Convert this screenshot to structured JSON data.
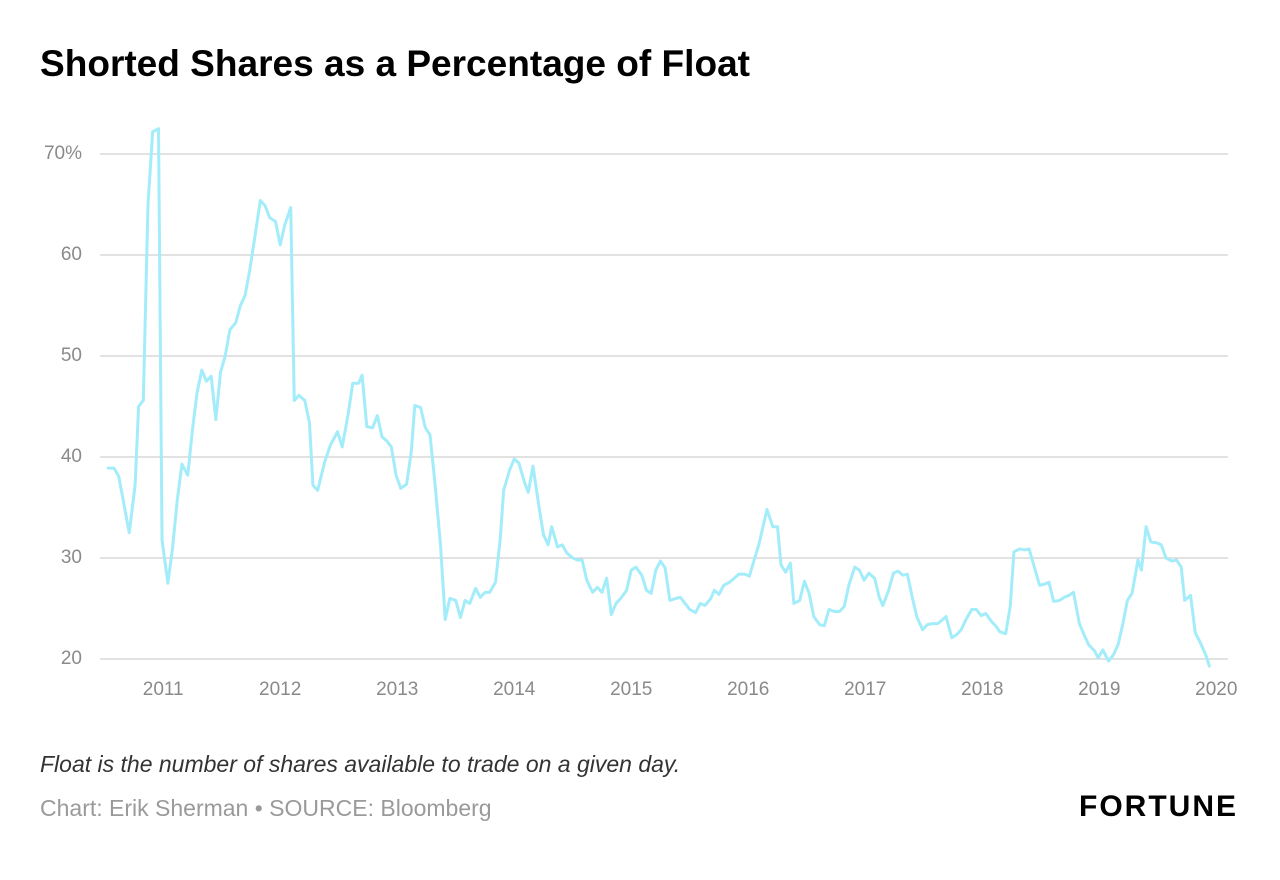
{
  "chart_data": {
    "type": "line",
    "title": "Shorted Shares as a Percentage of Float",
    "note": "Float is the number of shares available to trade on a given day.",
    "source": "Chart: Erik Sherman • SOURCE: Bloomberg",
    "logo": "FORTUNE",
    "grid": true,
    "xlim": [
      2010.46,
      2020.1
    ],
    "xticks": [
      2011,
      2012,
      2013,
      2014,
      2015,
      2016,
      2017,
      2018,
      2019,
      2020
    ],
    "ylim": [
      19,
      73
    ],
    "yticks": [
      {
        "value": 70,
        "label": "70%"
      },
      60,
      50,
      40,
      30,
      20
    ],
    "x": [
      2010.53,
      2010.58,
      2010.62,
      2010.71,
      2010.76,
      2010.79,
      2010.83,
      2010.87,
      2010.91,
      2010.96,
      2010.99,
      2011.04,
      2011.08,
      2011.12,
      2011.16,
      2011.21,
      2011.25,
      2011.29,
      2011.33,
      2011.37,
      2011.41,
      2011.45,
      2011.49,
      2011.53,
      2011.57,
      2011.62,
      2011.66,
      2011.7,
      2011.74,
      2011.79,
      2011.83,
      2011.87,
      2011.91,
      2011.96,
      2012.0,
      2012.04,
      2012.09,
      2012.12,
      2012.16,
      2012.21,
      2012.25,
      2012.28,
      2012.32,
      2012.38,
      2012.43,
      2012.49,
      2012.53,
      2012.58,
      2012.62,
      2012.67,
      2012.7,
      2012.74,
      2012.79,
      2012.83,
      2012.87,
      2012.91,
      2012.95,
      2012.99,
      2013.03,
      2013.08,
      2013.12,
      2013.15,
      2013.2,
      2013.24,
      2013.28,
      2013.32,
      2013.37,
      2013.41,
      2013.45,
      2013.5,
      2013.54,
      2013.58,
      2013.62,
      2013.67,
      2013.71,
      2013.75,
      2013.79,
      2013.84,
      2013.88,
      2013.91,
      2013.96,
      2014.0,
      2014.04,
      2014.09,
      2014.12,
      2014.16,
      2014.21,
      2014.25,
      2014.29,
      2014.32,
      2014.37,
      2014.41,
      2014.45,
      2014.5,
      2014.54,
      2014.58,
      2014.62,
      2014.67,
      2014.71,
      2014.75,
      2014.79,
      2014.83,
      2014.87,
      2014.91,
      2014.96,
      2015.0,
      2015.04,
      2015.09,
      2015.13,
      2015.17,
      2015.21,
      2015.25,
      2015.29,
      2015.33,
      2015.38,
      2015.42,
      2015.46,
      2015.5,
      2015.55,
      2015.59,
      2015.63,
      2015.68,
      2015.71,
      2015.75,
      2015.79,
      2015.84,
      2015.88,
      2015.92,
      2015.97,
      2016.01,
      2016.05,
      2016.09,
      2016.13,
      2016.16,
      2016.21,
      2016.25,
      2016.28,
      2016.32,
      2016.36,
      2016.39,
      2016.44,
      2016.48,
      2016.52,
      2016.56,
      2016.61,
      2016.65,
      2016.69,
      2016.74,
      2016.78,
      2016.82,
      2016.86,
      2016.91,
      2016.95,
      2016.99,
      2017.03,
      2017.08,
      2017.12,
      2017.15,
      2017.2,
      2017.24,
      2017.28,
      2017.32,
      2017.36,
      2017.4,
      2017.44,
      2017.49,
      2017.53,
      2017.57,
      2017.62,
      2017.66,
      2017.69,
      2017.74,
      2017.78,
      2017.82,
      2017.86,
      2017.91,
      2017.95,
      2017.99,
      2018.03,
      2018.08,
      2018.12,
      2018.15,
      2018.2,
      2018.24,
      2018.27,
      2018.32,
      2018.36,
      2018.4,
      2018.44,
      2018.49,
      2018.53,
      2018.57,
      2018.61,
      2018.66,
      2018.7,
      2018.74,
      2018.78,
      2018.83,
      2018.87,
      2018.91,
      2018.96,
      2018.99,
      2019.03,
      2019.08,
      2019.12,
      2019.16,
      2019.2,
      2019.24,
      2019.28,
      2019.33,
      2019.36,
      2019.4,
      2019.44,
      2019.49,
      2019.53,
      2019.57,
      2019.62,
      2019.66,
      2019.7,
      2019.73,
      2019.78,
      2019.82,
      2019.86,
      2019.91,
      2019.94
    ],
    "series": [
      {
        "color": "#a3ecfa",
        "values": [
          38.9,
          38.9,
          38.1,
          32.5,
          37.2,
          45.0,
          45.6,
          65.0,
          72.2,
          72.5,
          31.8,
          27.5,
          31.0,
          35.7,
          39.3,
          38.2,
          42.7,
          46.4,
          48.6,
          47.5,
          48.0,
          43.7,
          48.4,
          50.0,
          52.6,
          53.3,
          55.0,
          56.0,
          58.5,
          62.3,
          65.4,
          64.9,
          63.7,
          63.3,
          61.0,
          63.0,
          64.7,
          45.6,
          46.1,
          45.6,
          43.4,
          37.2,
          36.7,
          39.5,
          41.2,
          42.5,
          41.0,
          44.2,
          47.3,
          47.3,
          48.1,
          43.0,
          42.9,
          44.1,
          42.0,
          41.6,
          41.0,
          38.2,
          36.9,
          37.3,
          40.5,
          45.1,
          44.9,
          42.9,
          42.2,
          37.7,
          31.3,
          23.9,
          26.0,
          25.8,
          24.1,
          25.8,
          25.5,
          27.0,
          26.1,
          26.6,
          26.6,
          27.6,
          31.8,
          36.7,
          38.7,
          39.8,
          39.4,
          37.4,
          36.5,
          39.1,
          35.2,
          32.3,
          31.3,
          33.1,
          31.1,
          31.3,
          30.5,
          30.0,
          29.8,
          29.8,
          27.8,
          26.6,
          27.1,
          26.6,
          28.0,
          24.4,
          25.5,
          26.0,
          26.8,
          28.8,
          29.1,
          28.3,
          26.8,
          26.5,
          28.8,
          29.7,
          29.0,
          25.8,
          26.0,
          26.1,
          25.5,
          24.9,
          24.6,
          25.5,
          25.3,
          26.0,
          26.8,
          26.4,
          27.3,
          27.6,
          28.0,
          28.4,
          28.4,
          28.2,
          29.8,
          31.3,
          33.3,
          34.8,
          33.1,
          33.1,
          29.3,
          28.6,
          29.5,
          25.5,
          25.8,
          27.7,
          26.5,
          24.2,
          23.4,
          23.3,
          24.9,
          24.7,
          24.7,
          25.2,
          27.3,
          29.1,
          28.8,
          27.8,
          28.5,
          28.0,
          26.1,
          25.3,
          26.8,
          28.5,
          28.7,
          28.3,
          28.4,
          26.2,
          24.2,
          22.9,
          23.4,
          23.5,
          23.5,
          23.9,
          24.2,
          22.1,
          22.4,
          22.9,
          23.9,
          24.9,
          24.9,
          24.3,
          24.5,
          23.7,
          23.2,
          22.7,
          22.5,
          25.3,
          30.6,
          30.9,
          30.8,
          30.9,
          29.3,
          27.3,
          27.4,
          27.6,
          25.7,
          25.8,
          26.1,
          26.3,
          26.6,
          23.5,
          22.4,
          21.4,
          20.8,
          20.1,
          20.9,
          19.8,
          20.4,
          21.4,
          23.4,
          25.8,
          26.5,
          29.8,
          28.8,
          33.1,
          31.6,
          31.5,
          31.3,
          30.0,
          29.7,
          29.8,
          29.1,
          25.8,
          26.3,
          22.6,
          21.7,
          20.4,
          19.3
        ]
      }
    ]
  }
}
